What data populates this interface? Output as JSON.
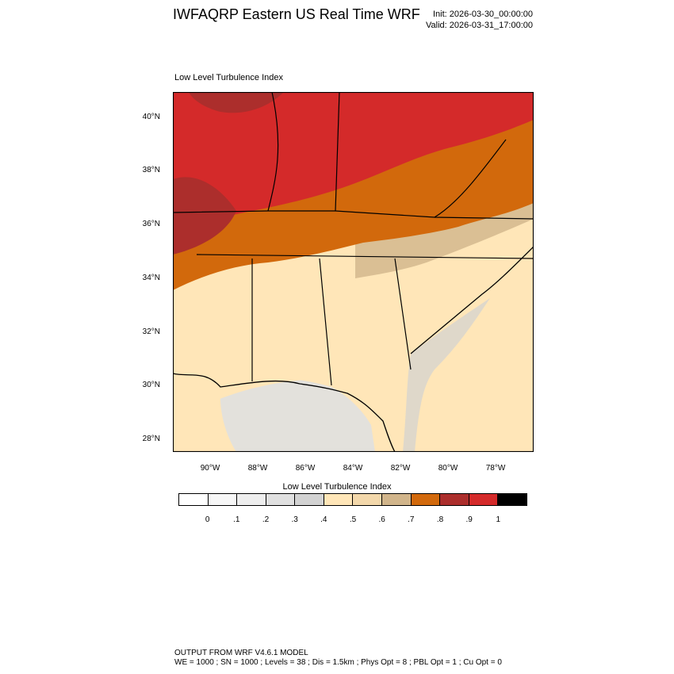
{
  "header": {
    "title": "IWFAQRP Eastern US Real Time WRF",
    "init": "Init: 2026-03-30_00:00:00",
    "valid": "Valid: 2026-03-31_17:00:00"
  },
  "map": {
    "title": "Low Level Turbulence Index",
    "lat_labels": [
      "40°N",
      "38°N",
      "36°N",
      "34°N",
      "32°N",
      "30°N",
      "28°N"
    ],
    "lon_labels": [
      "90°W",
      "88°W",
      "86°W",
      "84°W",
      "82°W",
      "80°W",
      "78°W"
    ]
  },
  "colorbar": {
    "title": "Low Level Turbulence Index",
    "colors": [
      "#ffffff",
      "#f7f7f7",
      "#eeeeee",
      "#e0e0e0",
      "#d2d2d2",
      "#ffe6b8",
      "#f3d8ab",
      "#d1b58b",
      "#d2690c",
      "#ac2e2c",
      "#d42a2a",
      "#000000"
    ],
    "tick_labels": [
      "0",
      ".1",
      ".2",
      ".3",
      ".4",
      ".5",
      ".6",
      ".7",
      ".8",
      ".9",
      "1"
    ]
  },
  "footer": {
    "line1": "OUTPUT FROM WRF V4.6.1 MODEL",
    "line2": "WE = 1000 ; SN = 1000 ; Levels = 38 ; Dis = 1.5km ; Phys Opt = 8 ; PBL Opt = 1 ; Cu Opt = 0"
  }
}
